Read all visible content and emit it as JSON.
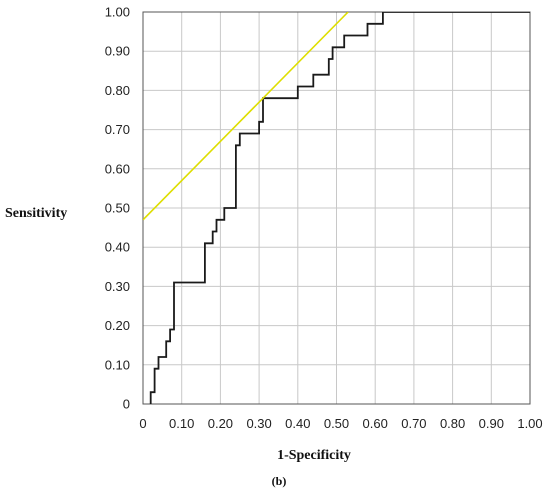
{
  "chart_data": {
    "type": "line",
    "xlabel": "1-Specificity",
    "ylabel": "Sensitivity",
    "caption": "(b)",
    "xlim": [
      0,
      1
    ],
    "ylim": [
      0,
      1
    ],
    "grid": true,
    "x_ticks": [
      "0",
      "0.10",
      "0.20",
      "0.30",
      "0.40",
      "0.50",
      "0.60",
      "0.70",
      "0.80",
      "0.90",
      "1.00"
    ],
    "y_ticks": [
      "0",
      "0.10",
      "0.20",
      "0.30",
      "0.40",
      "0.50",
      "0.60",
      "0.70",
      "0.80",
      "0.90",
      "1.00"
    ],
    "colors": {
      "roc": "#1a1a1a",
      "reference": "#dede00",
      "grid": "#c8c8c8",
      "frame": "#555555"
    },
    "series": [
      {
        "x": [
          0.02,
          0.02,
          0.03,
          0.03,
          0.04,
          0.04,
          0.05,
          0.05,
          0.06,
          0.06,
          0.07,
          0.07,
          0.08,
          0.08,
          0.16,
          0.16,
          0.18,
          0.18,
          0.19,
          0.19,
          0.21,
          0.21,
          0.24,
          0.24,
          0.25,
          0.25,
          0.3,
          0.3,
          0.31,
          0.31,
          0.4,
          0.4,
          0.44,
          0.44,
          0.48,
          0.48,
          0.49,
          0.49,
          0.52,
          0.52,
          0.58,
          0.58,
          0.62,
          0.62,
          1.0
        ],
        "y": [
          0.0,
          0.03,
          0.03,
          0.09,
          0.09,
          0.12,
          0.12,
          0.12,
          0.12,
          0.16,
          0.16,
          0.19,
          0.19,
          0.31,
          0.31,
          0.41,
          0.41,
          0.44,
          0.44,
          0.47,
          0.47,
          0.5,
          0.5,
          0.66,
          0.66,
          0.69,
          0.69,
          0.72,
          0.72,
          0.78,
          0.78,
          0.81,
          0.81,
          0.84,
          0.84,
          0.88,
          0.88,
          0.91,
          0.91,
          0.94,
          0.94,
          0.97,
          0.97,
          1.0,
          1.0
        ]
      },
      {
        "x": [
          0.0,
          0.53
        ],
        "y": [
          0.47,
          1.0
        ]
      }
    ]
  }
}
